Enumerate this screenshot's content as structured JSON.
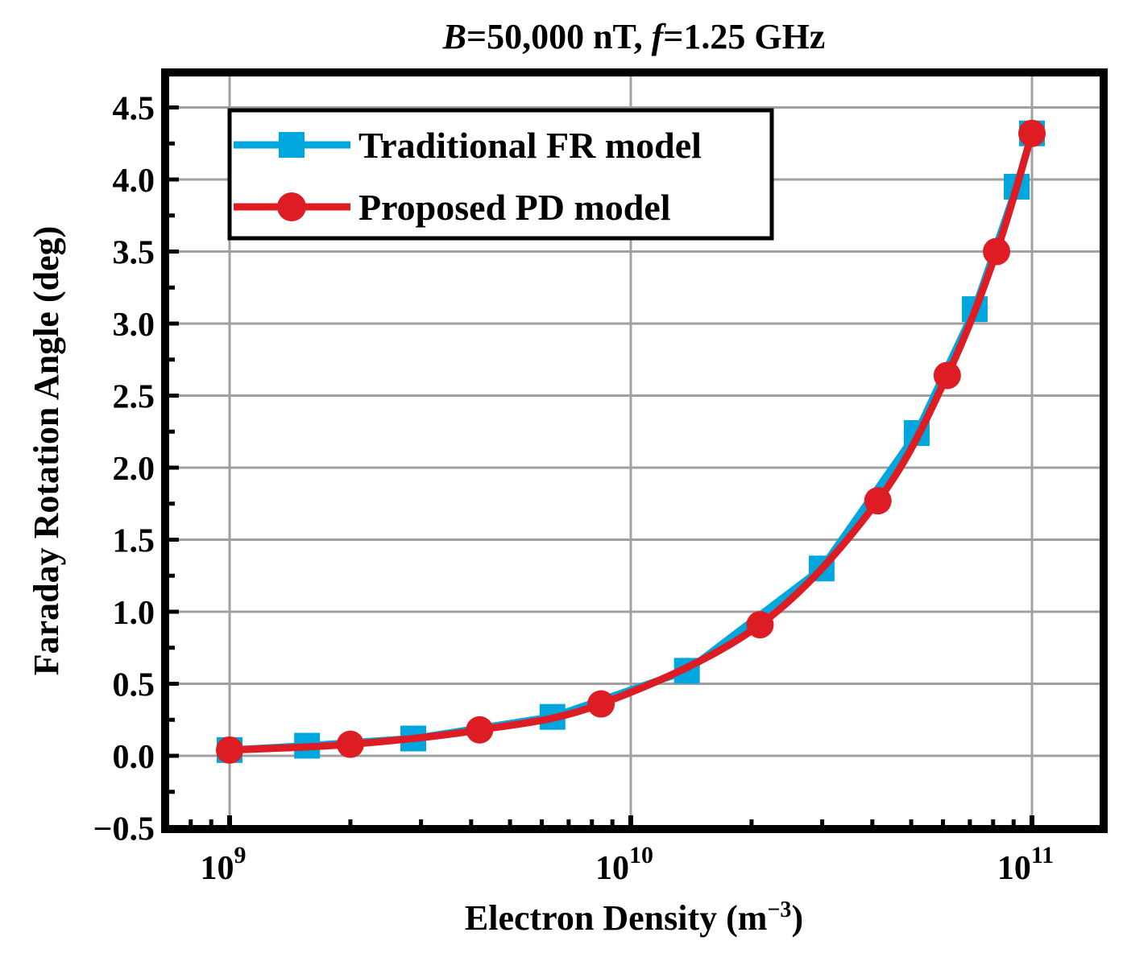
{
  "chart_data": {
    "type": "line",
    "title_parts": {
      "b": "B",
      "mid": "=50,000 nT, ",
      "f": "f",
      "rest": "=1.25 GHz"
    },
    "title": "B=50,000 nT, f=1.25 GHz",
    "xlabel": "Electron Density (m",
    "xlabel_sup": "−3",
    "xlabel_end": ")",
    "ylabel": "Faraday Rotation Angle (deg)",
    "xscale": "log",
    "xlim": [
      700000000.0,
      150000000000.0
    ],
    "ylim": [
      -0.5,
      4.75
    ],
    "grid": true,
    "legend_position": "top-left",
    "x_ticks": [
      {
        "base": "10",
        "exp": "9",
        "value": 1000000000.0
      },
      {
        "base": "10",
        "exp": "10",
        "value": 10000000000.0
      },
      {
        "base": "10",
        "exp": "11",
        "value": 100000000000.0
      }
    ],
    "y_ticks": [
      "−0.5",
      "0.0",
      "0.5",
      "1.0",
      "1.5",
      "2.0",
      "2.5",
      "3.0",
      "3.5",
      "4.0",
      "4.5"
    ],
    "y_tick_values": [
      -0.5,
      0,
      0.5,
      1.0,
      1.5,
      2.0,
      2.5,
      3.0,
      3.5,
      4.0,
      4.5
    ],
    "series": [
      {
        "name": "Traditional FR model",
        "color": "#00a6de",
        "marker": "square",
        "x": [
          1000000000.0,
          1560000000.0,
          2870000000.0,
          6380000000.0,
          13800000000.0,
          29900000000.0,
          51600000000.0,
          72000000000.0,
          91600000000.0,
          100000000000.0
        ],
        "y": [
          0.04,
          0.07,
          0.12,
          0.27,
          0.59,
          1.3,
          2.24,
          3.1,
          3.95,
          4.32
        ]
      },
      {
        "name": "Proposed PD model",
        "color": "#dd1c24",
        "marker": "circle",
        "x": [
          1000000000.0,
          2000000000.0,
          4200000000.0,
          8430000000.0,
          21000000000.0,
          41300000000.0,
          61500000000.0,
          81600000000.0,
          100000000000.0
        ],
        "y": [
          0.04,
          0.08,
          0.18,
          0.36,
          0.91,
          1.77,
          2.64,
          3.5,
          4.32
        ]
      }
    ]
  }
}
